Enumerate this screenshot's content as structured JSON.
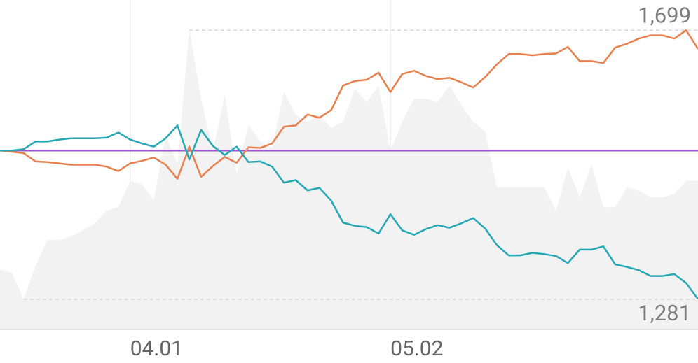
{
  "chart_data": {
    "type": "line",
    "categories": [
      null,
      null,
      null,
      null,
      null,
      null,
      null,
      null,
      null,
      null,
      null,
      "04.01",
      null,
      null,
      null,
      null,
      null,
      null,
      null,
      null,
      null,
      null,
      null,
      null,
      null,
      null,
      null,
      null,
      null,
      null,
      null,
      null,
      null,
      "05.02",
      null,
      null,
      null,
      null,
      null,
      null,
      null,
      null,
      null,
      null,
      null,
      null,
      null,
      null,
      null,
      null,
      null,
      null,
      null,
      null,
      null,
      null,
      null,
      null,
      null,
      null
    ],
    "series": [
      {
        "color": "#f2f2f2",
        "kind": "area",
        "axis": "y2",
        "values": [
          18,
          17,
          9,
          19,
          27,
          27,
          28,
          30,
          32,
          36,
          37,
          45,
          44,
          39,
          59,
          50,
          91,
          70,
          54,
          71,
          47,
          62,
          57,
          55,
          72,
          65,
          63,
          65,
          61,
          63,
          73,
          69,
          74,
          54,
          63,
          70,
          70,
          69,
          74,
          68,
          63,
          60,
          43,
          43,
          43,
          43,
          43,
          36,
          49,
          40,
          50,
          37,
          37,
          43,
          42,
          40,
          40,
          41,
          45,
          45
        ]
      },
      {
        "color": "#e8804e",
        "values": [
          1512,
          1510,
          1508,
          1495,
          1494,
          1492,
          1490,
          1490,
          1490,
          1487,
          1480,
          1492,
          1496,
          1501,
          1490,
          1468,
          1518,
          1471,
          1488,
          1502,
          1493,
          1517,
          1516,
          1523,
          1549,
          1551,
          1568,
          1563,
          1575,
          1613,
          1620,
          1622,
          1633,
          1603,
          1631,
          1636,
          1628,
          1623,
          1625,
          1618,
          1610,
          1626,
          1646,
          1662,
          1662,
          1660,
          1662,
          1663,
          1673,
          1651,
          1651,
          1648,
          1672,
          1678,
          1686,
          1691,
          1691,
          1686,
          1699,
          1670
        ]
      },
      {
        "color": "#26a8b4",
        "values": [
          1512,
          1512,
          1514,
          1526,
          1526,
          1529,
          1531,
          1531,
          1531,
          1532,
          1540,
          1529,
          1523,
          1518,
          1531,
          1551,
          1498,
          1544,
          1519,
          1505,
          1518,
          1494,
          1495,
          1487,
          1462,
          1466,
          1450,
          1454,
          1434,
          1400,
          1395,
          1393,
          1383,
          1413,
          1388,
          1381,
          1390,
          1396,
          1392,
          1399,
          1407,
          1391,
          1365,
          1349,
          1349,
          1353,
          1351,
          1348,
          1337,
          1358,
          1358,
          1363,
          1335,
          1331,
          1326,
          1317,
          1317,
          1320,
          1306,
          1281
        ]
      }
    ],
    "baseline": {
      "value": 1512,
      "color": "#9b59c9"
    },
    "annotations": [
      {
        "value": 1699,
        "label": "1,699"
      },
      {
        "value": 1281,
        "label": "1,281"
      }
    ],
    "ylim": [
      1235,
      1746
    ],
    "y2lim": [
      0,
      100
    ],
    "grid": true
  }
}
